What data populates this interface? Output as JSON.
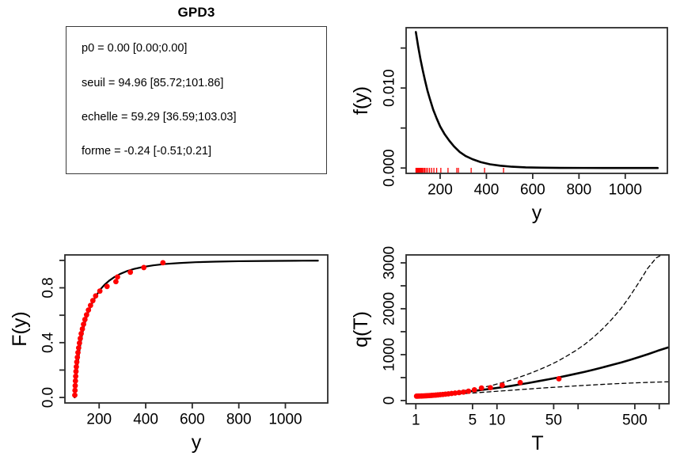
{
  "colors": {
    "point_red": "#ff0000",
    "curve_black": "#000000",
    "frame_gray": "#2a2a2a",
    "background": "#ffffff"
  },
  "info_panel": {
    "title": "GPD3",
    "lines": [
      "p0 = 0.00 [0.00;0.00]",
      "seuil = 94.96 [85.72;101.86]",
      "echelle = 59.29 [36.59;103.03]",
      "forme = -0.24 [-0.51;0.21]"
    ]
  },
  "chart_data": [
    {
      "id": "density",
      "type": "line",
      "title": "",
      "xlabel": "y",
      "ylabel": "f(y)",
      "xscale": "linear",
      "xlim": [
        53,
        1182
      ],
      "ylim": [
        -0.00067,
        0.01754
      ],
      "grid": false,
      "xticks": [
        {
          "v": 200,
          "label": "200"
        },
        {
          "v": 400,
          "label": "400"
        },
        {
          "v": 600,
          "label": "600"
        },
        {
          "v": 800,
          "label": "800"
        },
        {
          "v": 1000,
          "label": "1000"
        }
      ],
      "yticks": [
        {
          "v": 0.0,
          "label": "0.000"
        },
        {
          "v": 0.005,
          "label": ""
        },
        {
          "v": 0.01,
          "label": "0.010"
        },
        {
          "v": 0.015,
          "label": ""
        }
      ],
      "series": [
        {
          "name": "fitted-density-curve",
          "dash": "none",
          "width": 2.6,
          "color": "#000000",
          "x": [
            95,
            105,
            115,
            125,
            135,
            145,
            155,
            170,
            185,
            200,
            220,
            240,
            260,
            285,
            310,
            340,
            375,
            415,
            460,
            510,
            570,
            640,
            720,
            820,
            940,
            1060,
            1140
          ],
          "y": [
            0.017,
            0.0152,
            0.0136,
            0.0122,
            0.0109,
            0.0097,
            0.0087,
            0.0073,
            0.0062,
            0.0052,
            0.0042,
            0.0034,
            0.0027,
            0.002,
            0.0015,
            0.0011,
            0.00074,
            0.00047,
            0.00029,
            0.00016,
            8e-05,
            4e-05,
            2e-05,
            1e-05,
            5e-06,
            2e-06,
            1e-06
          ]
        }
      ],
      "rug": {
        "color": "#ff0000",
        "values": [
          95.5,
          96.3,
          97.2,
          98.2,
          99.3,
          100.5,
          102,
          104,
          106.5,
          109,
          112,
          115.5,
          119,
          123,
          128,
          133,
          139,
          146,
          154,
          163,
          173,
          185,
          203,
          234,
          272,
          279,
          334,
          392,
          474
        ]
      }
    },
    {
      "id": "cdf",
      "type": "line+scatter",
      "title": "",
      "xlabel": "y",
      "ylabel": "F(y)",
      "xscale": "linear",
      "xlim": [
        53,
        1182
      ],
      "ylim": [
        -0.04,
        1.04
      ],
      "grid": false,
      "xticks": [
        {
          "v": 200,
          "label": "200"
        },
        {
          "v": 400,
          "label": "400"
        },
        {
          "v": 600,
          "label": "600"
        },
        {
          "v": 800,
          "label": "800"
        },
        {
          "v": 1000,
          "label": "1000"
        }
      ],
      "yticks": [
        {
          "v": 0.0,
          "label": "0.0"
        },
        {
          "v": 0.2,
          "label": ""
        },
        {
          "v": 0.4,
          "label": "0.4"
        },
        {
          "v": 0.6,
          "label": ""
        },
        {
          "v": 0.8,
          "label": "0.8"
        },
        {
          "v": 1.0,
          "label": ""
        }
      ],
      "series": [
        {
          "name": "fitted-cdf-curve",
          "dash": "none",
          "width": 2.2,
          "color": "#000000",
          "x": [
            95,
            99,
            103,
            108,
            114,
            120,
            127,
            135,
            144,
            154,
            165,
            177,
            191,
            206,
            223,
            243,
            265,
            290,
            318,
            350,
            388,
            432,
            484,
            545,
            615,
            700,
            800,
            920,
            1040,
            1140
          ],
          "y": [
            0,
            0.09,
            0.17,
            0.25,
            0.325,
            0.395,
            0.46,
            0.52,
            0.575,
            0.625,
            0.67,
            0.712,
            0.752,
            0.79,
            0.822,
            0.852,
            0.878,
            0.901,
            0.921,
            0.938,
            0.952,
            0.964,
            0.974,
            0.981,
            0.987,
            0.991,
            0.994,
            0.996,
            0.9975,
            0.998
          ]
        }
      ],
      "points": {
        "name": "empirical-cdf-points",
        "color": "#ff0000",
        "r": 3.4,
        "x": [
          95.5,
          96.3,
          97.2,
          98.2,
          99.3,
          100.5,
          102,
          104,
          106.5,
          109,
          112,
          115.5,
          119,
          123,
          128,
          133,
          139,
          146,
          154,
          163,
          173,
          185,
          203,
          234,
          272,
          279,
          334,
          392,
          474
        ],
        "y": [
          0.017,
          0.052,
          0.086,
          0.121,
          0.155,
          0.19,
          0.224,
          0.259,
          0.293,
          0.328,
          0.362,
          0.397,
          0.431,
          0.466,
          0.5,
          0.534,
          0.569,
          0.603,
          0.638,
          0.672,
          0.707,
          0.741,
          0.776,
          0.81,
          0.845,
          0.879,
          0.914,
          0.948,
          0.983
        ]
      }
    },
    {
      "id": "return_level",
      "type": "line+scatter",
      "title": "",
      "xlabel": "T",
      "ylabel": "q(T)",
      "xscale": "log",
      "xlim": [
        0.759,
        1318
      ],
      "ylim": [
        -70,
        3173
      ],
      "grid": false,
      "xticks": [
        {
          "v": 1,
          "label": "1"
        },
        {
          "v": 5,
          "label": "5"
        },
        {
          "v": 10,
          "label": "10"
        },
        {
          "v": 50,
          "label": "50"
        },
        {
          "v": 100,
          "label": ""
        },
        {
          "v": 500,
          "label": "500"
        },
        {
          "v": 1000,
          "label": ""
        }
      ],
      "yticks": [
        {
          "v": 0,
          "label": "0"
        },
        {
          "v": 500,
          "label": ""
        },
        {
          "v": 1000,
          "label": "1000"
        },
        {
          "v": 1500,
          "label": ""
        },
        {
          "v": 2000,
          "label": "2000"
        },
        {
          "v": 2500,
          "label": ""
        },
        {
          "v": 3000,
          "label": "3000"
        }
      ],
      "series": [
        {
          "name": "return-level-median-curve",
          "dash": "none",
          "width": 2.6,
          "color": "#000000",
          "x": [
            1,
            1.25,
            1.6,
            2,
            2.6,
            3.3,
            4.2,
            5.4,
            7,
            9,
            11.6,
            15,
            19,
            25,
            32,
            42,
            55,
            71,
            92,
            120,
            155,
            200,
            260,
            340,
            440,
            570,
            740,
            960,
            1276
          ],
          "y": [
            96,
            108,
            122,
            137,
            154,
            172,
            192,
            214,
            238,
            263,
            290,
            319,
            350,
            385,
            420,
            458,
            497,
            537,
            580,
            625,
            672,
            722,
            775,
            830,
            888,
            950,
            1015,
            1085,
            1155
          ]
        },
        {
          "name": "confidence-upper-curve",
          "dash": "dashed",
          "width": 1.3,
          "color": "#000000",
          "x": [
            1,
            1.3,
            1.6,
            2,
            2.6,
            3.3,
            4.2,
            5.4,
            7,
            9,
            11.6,
            15,
            19,
            25,
            32,
            42,
            55,
            71,
            92,
            120,
            155,
            200,
            260,
            340,
            430,
            560,
            720,
            920,
            1150,
            1276
          ],
          "y": [
            98,
            115,
            130,
            150,
            172,
            196,
            224,
            256,
            294,
            338,
            390,
            450,
            510,
            585,
            660,
            750,
            850,
            960,
            1080,
            1220,
            1380,
            1560,
            1770,
            2010,
            2260,
            2570,
            2880,
            3110,
            3200,
            3260
          ]
        },
        {
          "name": "confidence-lower-curve",
          "dash": "dashed",
          "width": 1.3,
          "color": "#000000",
          "x": [
            1,
            1.3,
            1.6,
            2,
            2.6,
            3.3,
            4.2,
            5.4,
            7,
            9,
            11.6,
            15,
            19,
            25,
            32,
            42,
            55,
            71,
            92,
            120,
            155,
            200,
            260,
            340,
            440,
            570,
            740,
            960,
            1276
          ],
          "y": [
            94,
            102,
            108,
            118,
            130,
            142,
            155,
            168,
            182,
            196,
            210,
            224,
            238,
            252,
            266,
            280,
            293,
            306,
            318,
            330,
            341,
            352,
            362,
            372,
            381,
            389,
            396,
            402,
            408
          ]
        }
      ],
      "points": {
        "name": "empirical-return-points",
        "color": "#ff0000",
        "r": 3.4,
        "x": [
          1.02,
          1.05,
          1.09,
          1.14,
          1.18,
          1.23,
          1.29,
          1.35,
          1.42,
          1.49,
          1.57,
          1.66,
          1.76,
          1.87,
          2.0,
          2.15,
          2.32,
          2.52,
          2.76,
          3.05,
          3.41,
          3.87,
          4.46,
          5.27,
          6.44,
          8.29,
          11.6,
          19.33,
          58.0
        ],
        "y": [
          95.5,
          96.3,
          97.2,
          98.2,
          99.3,
          100.5,
          102,
          104,
          106.5,
          109,
          112,
          115.5,
          119,
          123,
          128,
          133,
          139,
          146,
          154,
          163,
          173,
          185,
          203,
          234,
          272,
          279,
          334,
          392,
          474
        ]
      }
    }
  ]
}
